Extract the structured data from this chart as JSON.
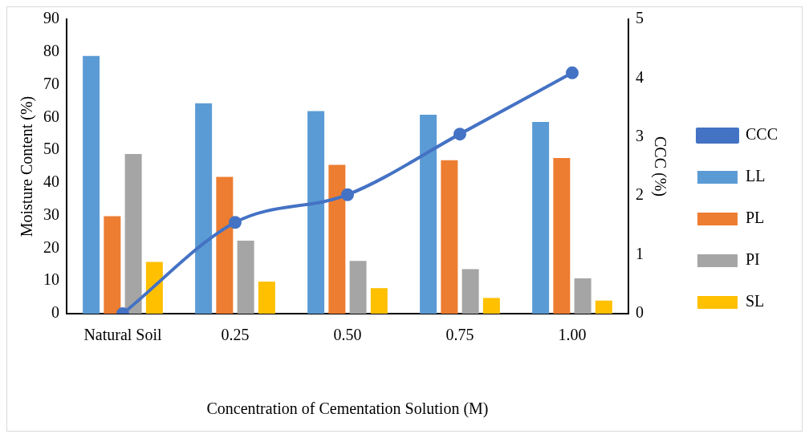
{
  "chart_data": {
    "type": "bar",
    "xlabel": "Concentration of Cementation Solution (M)",
    "ylabel": "Moisture Content (%)",
    "y2label": "CCC (%)",
    "categories": [
      "Natural Soil",
      "0.25",
      "0.50",
      "0.75",
      "1.00"
    ],
    "series": [
      {
        "name": "LL",
        "color": "#5b9bd5",
        "values": [
          78.8,
          64.3,
          61.9,
          60.8,
          58.6
        ]
      },
      {
        "name": "PL",
        "color": "#ed7d31",
        "values": [
          29.8,
          41.8,
          45.5,
          46.9,
          47.6
        ]
      },
      {
        "name": "PI",
        "color": "#a5a5a5",
        "values": [
          48.8,
          22.3,
          16.1,
          13.6,
          10.8
        ]
      },
      {
        "name": "SL",
        "color": "#ffc000",
        "values": [
          15.8,
          9.8,
          7.8,
          4.8,
          4.0
        ]
      },
      {
        "name": "CCC",
        "type": "line",
        "axis": "y2",
        "color": "#4472c4",
        "marker": "circle",
        "values": [
          0,
          1.55,
          2.02,
          3.05,
          4.09
        ]
      }
    ],
    "ylim": [
      0,
      90
    ],
    "yticks": [
      0,
      10,
      20,
      30,
      40,
      50,
      60,
      70,
      80,
      90
    ],
    "y2lim": [
      0,
      5
    ],
    "y2ticks": [
      0,
      1,
      2,
      3,
      4,
      5
    ],
    "grid": false,
    "legend": "right"
  }
}
